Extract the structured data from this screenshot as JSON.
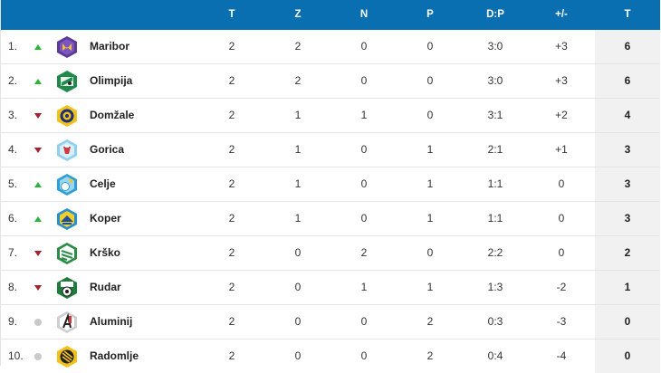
{
  "columns": {
    "played": "T",
    "wins": "Z",
    "draws": "N",
    "losses": "P",
    "goals": "D:P",
    "diff": "+/-",
    "points": "T"
  },
  "rows": [
    {
      "pos": "1.",
      "trend": "up",
      "team": "Maribor",
      "crest": "maribor-crest-icon",
      "played": "2",
      "wins": "2",
      "draws": "0",
      "losses": "0",
      "goals": "3:0",
      "diff": "+3",
      "points": "6"
    },
    {
      "pos": "2.",
      "trend": "up",
      "team": "Olimpija",
      "crest": "olimpija-crest-icon",
      "played": "2",
      "wins": "2",
      "draws": "0",
      "losses": "0",
      "goals": "3:0",
      "diff": "+3",
      "points": "6"
    },
    {
      "pos": "3.",
      "trend": "down",
      "team": "Domžale",
      "crest": "domzale-crest-icon",
      "played": "2",
      "wins": "1",
      "draws": "1",
      "losses": "0",
      "goals": "3:1",
      "diff": "+2",
      "points": "4"
    },
    {
      "pos": "4.",
      "trend": "down",
      "team": "Gorica",
      "crest": "gorica-crest-icon",
      "played": "2",
      "wins": "1",
      "draws": "0",
      "losses": "1",
      "goals": "2:1",
      "diff": "+1",
      "points": "3"
    },
    {
      "pos": "5.",
      "trend": "up",
      "team": "Celje",
      "crest": "celje-crest-icon",
      "played": "2",
      "wins": "1",
      "draws": "0",
      "losses": "1",
      "goals": "1:1",
      "diff": "0",
      "points": "3"
    },
    {
      "pos": "6.",
      "trend": "up",
      "team": "Koper",
      "crest": "koper-crest-icon",
      "played": "2",
      "wins": "1",
      "draws": "0",
      "losses": "1",
      "goals": "1:1",
      "diff": "0",
      "points": "3"
    },
    {
      "pos": "7.",
      "trend": "down",
      "team": "Krško",
      "crest": "krsko-crest-icon",
      "played": "2",
      "wins": "0",
      "draws": "2",
      "losses": "0",
      "goals": "2:2",
      "diff": "0",
      "points": "2"
    },
    {
      "pos": "8.",
      "trend": "down",
      "team": "Rudar",
      "crest": "rudar-crest-icon",
      "played": "2",
      "wins": "0",
      "draws": "1",
      "losses": "1",
      "goals": "1:3",
      "diff": "-2",
      "points": "1"
    },
    {
      "pos": "9.",
      "trend": "same",
      "team": "Aluminij",
      "crest": "aluminij-crest-icon",
      "played": "2",
      "wins": "0",
      "draws": "0",
      "losses": "2",
      "goals": "0:3",
      "diff": "-3",
      "points": "0"
    },
    {
      "pos": "10.",
      "trend": "same",
      "team": "Radomlje",
      "crest": "radomlje-crest-icon",
      "played": "2",
      "wins": "0",
      "draws": "0",
      "losses": "2",
      "goals": "0:4",
      "diff": "-4",
      "points": "0"
    }
  ],
  "colors": {
    "header_bg": "#0a6fb0",
    "trend_up": "#2bb43c",
    "trend_down": "#a5232c",
    "trend_same": "#c9c9c9",
    "points_col_bg": "#f1f1f1"
  }
}
